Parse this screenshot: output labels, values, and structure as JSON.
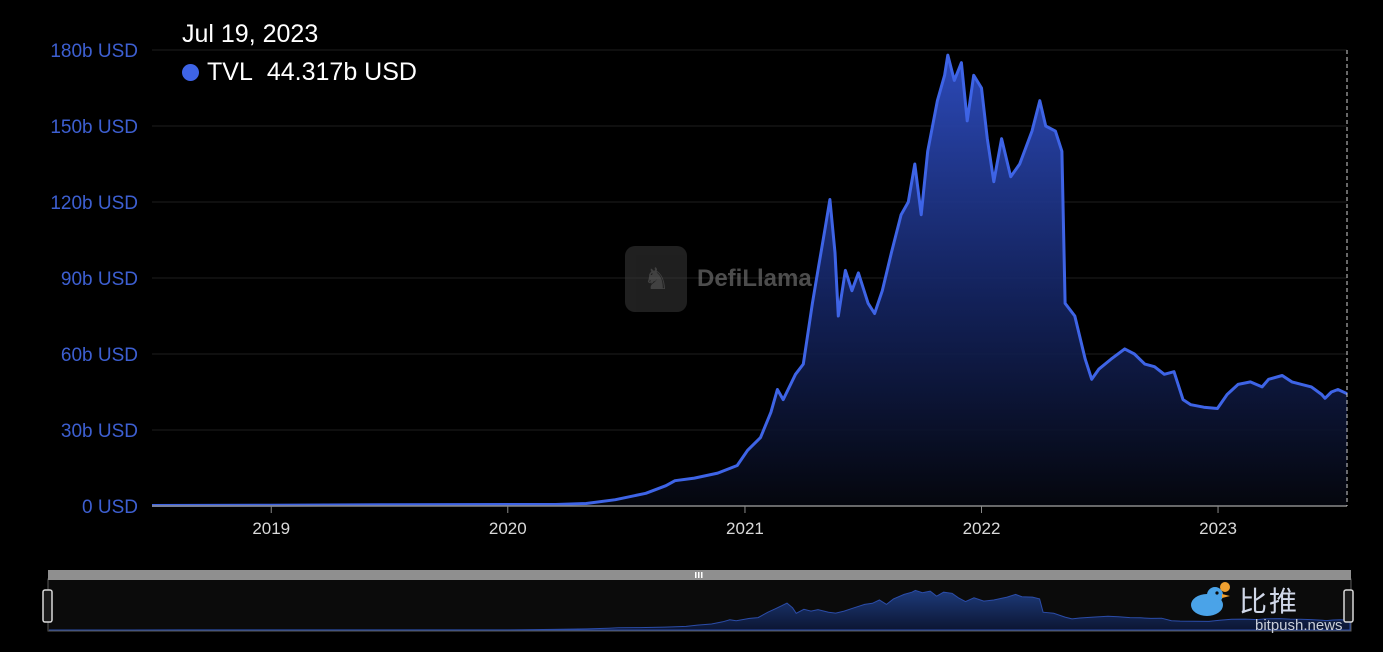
{
  "tooltip": {
    "date": "Jul 19, 2023",
    "series_label": "TVL",
    "value": "44.317b USD",
    "dot_color": "#3e64e6"
  },
  "watermark": {
    "text": "DefiLlama",
    "icon": "llama-logo-icon"
  },
  "branding": {
    "cn_text": "比推",
    "url": "bitpush.news",
    "icon": "bird-logo-icon"
  },
  "colors": {
    "line": "#3e64e6",
    "grid": "#1e1e1e",
    "axis_label": "#3d5fd1",
    "tick_label": "#d9d9d9"
  },
  "chart_data": {
    "type": "area",
    "title": "",
    "xlabel": "",
    "ylabel": "",
    "x_range": [
      "2018-07-01",
      "2023-07-19"
    ],
    "ylim": [
      0,
      180
    ],
    "y_ticks": [
      "0 USD",
      "30b USD",
      "60b USD",
      "90b USD",
      "120b USD",
      "150b USD",
      "180b USD"
    ],
    "y_tick_values": [
      0,
      30,
      60,
      90,
      120,
      150,
      180
    ],
    "x_ticks": [
      "2019",
      "2020",
      "2021",
      "2022",
      "2023"
    ],
    "x_tick_values": [
      "2019-01-01",
      "2020-01-01",
      "2021-01-01",
      "2022-01-01",
      "2023-01-01"
    ],
    "grid": true,
    "series": [
      {
        "name": "TVL",
        "unit": "b USD",
        "points": [
          [
            "2018-07-01",
            0.2
          ],
          [
            "2019-01-01",
            0.3
          ],
          [
            "2019-07-01",
            0.5
          ],
          [
            "2020-01-01",
            0.6
          ],
          [
            "2020-03-15",
            0.6
          ],
          [
            "2020-05-01",
            1.0
          ],
          [
            "2020-06-15",
            2.5
          ],
          [
            "2020-08-01",
            5.0
          ],
          [
            "2020-09-01",
            8.0
          ],
          [
            "2020-09-15",
            10.0
          ],
          [
            "2020-10-15",
            11.0
          ],
          [
            "2020-11-20",
            13.0
          ],
          [
            "2020-12-20",
            16.0
          ],
          [
            "2021-01-05",
            22.0
          ],
          [
            "2021-01-25",
            27.0
          ],
          [
            "2021-02-10",
            37.0
          ],
          [
            "2021-02-20",
            46.0
          ],
          [
            "2021-03-01",
            42.0
          ],
          [
            "2021-03-20",
            52.0
          ],
          [
            "2021-04-01",
            56.0
          ],
          [
            "2021-04-15",
            80.0
          ],
          [
            "2021-04-25",
            95.0
          ],
          [
            "2021-05-05",
            110.0
          ],
          [
            "2021-05-12",
            121.0
          ],
          [
            "2021-05-20",
            100.0
          ],
          [
            "2021-05-25",
            75.0
          ],
          [
            "2021-06-05",
            93.0
          ],
          [
            "2021-06-15",
            85.0
          ],
          [
            "2021-06-25",
            92.0
          ],
          [
            "2021-07-10",
            80.0
          ],
          [
            "2021-07-20",
            76.0
          ],
          [
            "2021-08-01",
            85.0
          ],
          [
            "2021-08-15",
            100.0
          ],
          [
            "2021-08-30",
            115.0
          ],
          [
            "2021-09-10",
            120.0
          ],
          [
            "2021-09-20",
            135.0
          ],
          [
            "2021-09-30",
            115.0
          ],
          [
            "2021-10-10",
            140.0
          ],
          [
            "2021-10-25",
            160.0
          ],
          [
            "2021-11-05",
            170.0
          ],
          [
            "2021-11-10",
            178.0
          ],
          [
            "2021-11-20",
            168.0
          ],
          [
            "2021-12-01",
            175.0
          ],
          [
            "2021-12-10",
            152.0
          ],
          [
            "2021-12-20",
            170.0
          ],
          [
            "2022-01-01",
            165.0
          ],
          [
            "2022-01-10",
            145.0
          ],
          [
            "2022-01-20",
            128.0
          ],
          [
            "2022-02-01",
            145.0
          ],
          [
            "2022-02-15",
            130.0
          ],
          [
            "2022-03-01",
            135.0
          ],
          [
            "2022-03-20",
            148.0
          ],
          [
            "2022-04-01",
            160.0
          ],
          [
            "2022-04-10",
            150.0
          ],
          [
            "2022-04-25",
            148.0
          ],
          [
            "2022-05-05",
            140.0
          ],
          [
            "2022-05-10",
            80.0
          ],
          [
            "2022-05-25",
            75.0
          ],
          [
            "2022-06-10",
            58.0
          ],
          [
            "2022-06-20",
            50.0
          ],
          [
            "2022-07-01",
            54.0
          ],
          [
            "2022-07-20",
            58.0
          ],
          [
            "2022-08-10",
            62.0
          ],
          [
            "2022-08-25",
            60.0
          ],
          [
            "2022-09-10",
            56.0
          ],
          [
            "2022-09-25",
            55.0
          ],
          [
            "2022-10-10",
            52.0
          ],
          [
            "2022-10-25",
            53.0
          ],
          [
            "2022-11-08",
            42.0
          ],
          [
            "2022-11-20",
            40.0
          ],
          [
            "2022-12-10",
            39.0
          ],
          [
            "2022-12-31",
            38.5
          ],
          [
            "2023-01-15",
            44.0
          ],
          [
            "2023-02-01",
            48.0
          ],
          [
            "2023-02-20",
            49.0
          ],
          [
            "2023-03-10",
            47.0
          ],
          [
            "2023-03-20",
            50.0
          ],
          [
            "2023-04-10",
            51.5
          ],
          [
            "2023-04-25",
            49.0
          ],
          [
            "2023-05-10",
            48.0
          ],
          [
            "2023-05-25",
            47.0
          ],
          [
            "2023-06-10",
            44.0
          ],
          [
            "2023-06-15",
            42.5
          ],
          [
            "2023-06-25",
            45.0
          ],
          [
            "2023-07-05",
            46.0
          ],
          [
            "2023-07-19",
            44.317
          ]
        ]
      }
    ]
  }
}
